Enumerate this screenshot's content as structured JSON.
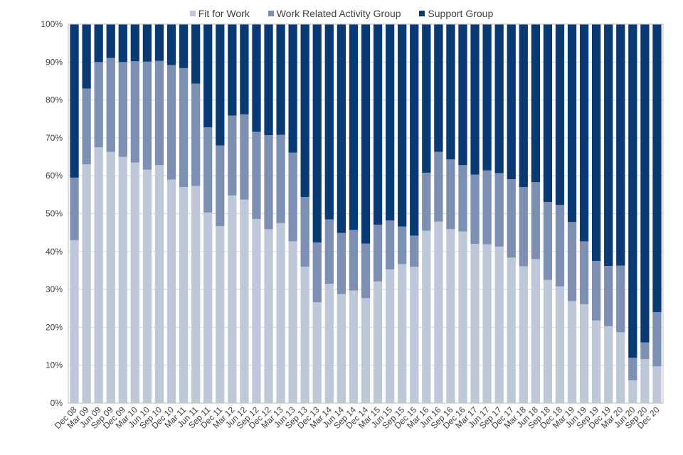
{
  "chart_data": {
    "type": "bar",
    "stacked": true,
    "title": "",
    "xlabel": "",
    "ylabel": "",
    "ylim": [
      0,
      100
    ],
    "y_ticks": [
      "0%",
      "10%",
      "20%",
      "30%",
      "40%",
      "50%",
      "60%",
      "70%",
      "80%",
      "90%",
      "100%"
    ],
    "legend_position": "top-center",
    "categories": [
      "Dec 08",
      "Mar 09",
      "Jun 09",
      "Sep 09",
      "Dec 09",
      "Mar 10",
      "Jun 10",
      "Sep 10",
      "Dec 10",
      "Mar 11",
      "Jun 11",
      "Sep 11",
      "Dec 11",
      "Mar 12",
      "Jun 12",
      "Sep 12",
      "Dec 12",
      "Mar 13",
      "Jun 13",
      "Sep 13",
      "Dec 13",
      "Mar 14",
      "Jun 14",
      "Sep 14",
      "Dec 14",
      "Mar 15",
      "Jun 15",
      "Sep 15",
      "Dec 15",
      "Mar 16",
      "Jun 16",
      "Sep 16",
      "Dec 16",
      "Mar 17",
      "Jun 17",
      "Sep 17",
      "Dec 17",
      "Mar 18",
      "Jun 18",
      "Sep 18",
      "Dec 18",
      "Mar 19",
      "Jun 19",
      "Sep 19",
      "Dec 19",
      "Mar 20",
      "Jun 20",
      "Sep 20",
      "Dec 20"
    ],
    "tick_labels_shown": [
      "Dec 08",
      "Mar 09",
      "Jun 09",
      "Sep 09",
      "Dec 09",
      "Mar 10",
      "Jun 10",
      "Sep 10",
      "Dec 10",
      "Mar 11",
      "Jun 11",
      "Sep 11",
      "Dec 11",
      "Mar 12",
      "Jun 12",
      "Sep 12",
      "Dec 12",
      "Mar 13",
      "Jun 13",
      "Sep 13",
      "Dec 13",
      "Mar 14",
      "Jun 14",
      "Sep 14",
      "Dec 14",
      "Mar 15",
      "Jun 15",
      "Sep 15",
      "Dec 15",
      "Mar 16",
      "Jun 16",
      "Sep 16",
      "Dec 16",
      "Mar 17",
      "Jun 17",
      "Sep 17",
      "Dec 17",
      "Mar 18",
      "Jun 18",
      "Sep 18",
      "Dec 18",
      "Mar 19",
      "Jun 19",
      "Sep 19",
      "Dec 19",
      "Mar 20",
      "Jun 20",
      "Sep 20",
      "Dec 20"
    ],
    "series": [
      {
        "name": "Fit for Work",
        "color": "#bfc8d8",
        "values": [
          43,
          63,
          67.5,
          66.3,
          65,
          63.5,
          61.6,
          62.8,
          59,
          57,
          57.3,
          50.3,
          46.7,
          54.8,
          53.7,
          48.6,
          45.9,
          47.5,
          42.7,
          36,
          26.6,
          31.5,
          28.8,
          29.7,
          27.7,
          32.1,
          35.3,
          36.7,
          36,
          45.5,
          47.9,
          45.9,
          45.3,
          42,
          41.9,
          41.3,
          38.4,
          36.1,
          38,
          32.5,
          30.8,
          26.9,
          26.1,
          21.8,
          20.3,
          18.7,
          6,
          11.6,
          9.7
        ]
      },
      {
        "name": "Work Related Activity Group",
        "color": "#7e8fb4",
        "values": [
          16.5,
          20,
          22.5,
          24.8,
          25,
          26.7,
          28.5,
          27.5,
          30.2,
          31.4,
          27,
          22.5,
          21.3,
          21.1,
          22.5,
          23,
          24.8,
          23.3,
          23.4,
          18.4,
          15.8,
          17,
          16.1,
          16,
          14.4,
          15,
          12.9,
          9.9,
          8.2,
          15.3,
          18.4,
          18.4,
          17.5,
          18.3,
          19.5,
          19.4,
          20.7,
          20.9,
          20.3,
          20.6,
          21.5,
          20.9,
          16.6,
          15.7,
          15.9,
          17.6,
          6,
          4.4,
          14.3
        ]
      },
      {
        "name": "Support Group",
        "color": "#0a3a73",
        "values": [
          40.5,
          17,
          10,
          8.9,
          10,
          9.8,
          9.9,
          9.7,
          10.8,
          11.6,
          15.7,
          27.2,
          32,
          24.1,
          23.8,
          28.4,
          29.3,
          29.2,
          33.9,
          45.6,
          57.6,
          51.5,
          55.1,
          54.3,
          57.9,
          52.9,
          51.8,
          53.4,
          55.8,
          39.2,
          33.7,
          35.7,
          37.2,
          39.7,
          38.6,
          39.3,
          40.9,
          43,
          41.7,
          46.9,
          47.7,
          52.2,
          57.3,
          62.5,
          63.8,
          63.7,
          88,
          84,
          76
        ]
      }
    ]
  }
}
